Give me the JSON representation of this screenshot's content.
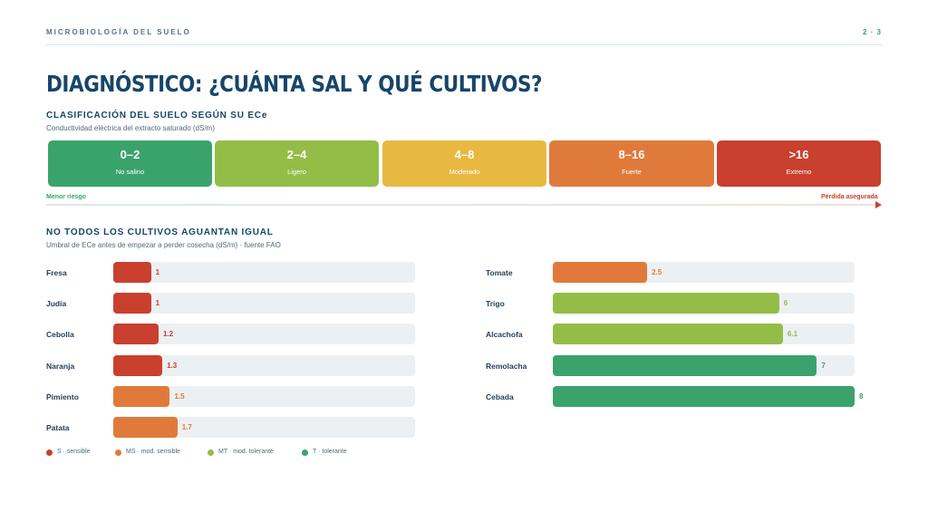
{
  "header": {
    "kicker": "MICROBIOLOGÍA DEL SUELO",
    "page": "2 · 3"
  },
  "title": "DIAGNÓSTICO: ¿CUÁNTA SAL Y QUÉ CULTIVOS?",
  "colors": {
    "S": "#c9402f",
    "MS": "#e07a3a",
    "MT": "#93bd47",
    "T": "#3aa36c",
    "mod": "#e8b941"
  },
  "soil": {
    "title": "CLASIFICACIÓN DEL SUELO SEGÚN SU ECe",
    "subtitle": "Conductividad eléctrica del extracto saturado (dS/m)",
    "classes": [
      {
        "range": "0–2",
        "label": "No salino",
        "color": "#3aa36c"
      },
      {
        "range": "2–4",
        "label": "Ligero",
        "color": "#93bd47"
      },
      {
        "range": "4–8",
        "label": "Moderado",
        "color": "#e8b941"
      },
      {
        "range": "8–16",
        "label": "Fuerte",
        "color": "#e07a3a"
      },
      {
        "range": ">16",
        "label": "Extremo",
        "color": "#c9402f"
      }
    ],
    "low_risk": "Menor riesgo",
    "high_risk": "Pérdida asegurada"
  },
  "crops": {
    "title": "NO TODOS LOS CULTIVOS AGUANTAN IGUAL",
    "subtitle": "Umbral de ECe antes de empezar a perder cosecha (dS/m) · fuente FAO"
  },
  "chart_data": [
    {
      "type": "bar",
      "orientation": "horizontal",
      "categories": [
        "Fresa",
        "Judía",
        "Cebolla",
        "Naranja",
        "Pimiento",
        "Patata"
      ],
      "values": [
        1,
        1,
        1.2,
        1.3,
        1.5,
        1.7
      ],
      "labels": [
        "1",
        "1",
        "1.2",
        "1.3",
        "1.5",
        "1.7"
      ],
      "tolerance": [
        "S",
        "S",
        "S",
        "S",
        "MS",
        "MS"
      ],
      "xlim": [
        0,
        8
      ]
    },
    {
      "type": "bar",
      "orientation": "horizontal",
      "categories": [
        "Tomate",
        "Trigo",
        "Alcachofa",
        "Remolacha",
        "Cebada"
      ],
      "values": [
        2.5,
        6,
        6.1,
        7,
        8
      ],
      "labels": [
        "2.5",
        "6",
        "6.1",
        "7",
        "8"
      ],
      "tolerance": [
        "MS",
        "MT",
        "MT",
        "T",
        "T"
      ],
      "xlim": [
        0,
        8
      ]
    }
  ],
  "legend": [
    {
      "key": "S",
      "label": "S · sensible"
    },
    {
      "key": "MS",
      "label": "MS · mod. sensible"
    },
    {
      "key": "MT",
      "label": "MT · mod. tolerante"
    },
    {
      "key": "T",
      "label": "T · tolerante"
    }
  ]
}
